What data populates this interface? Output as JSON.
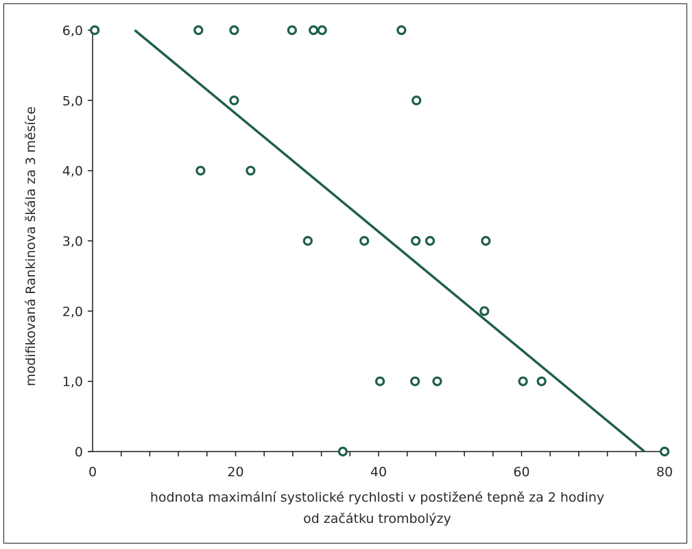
{
  "chart_data": {
    "type": "scatter",
    "title": "",
    "xlabel_lines": [
      "hodnota maximální systolické rychlosti v postižené tepně za 2 hodiny",
      "od začátku trombolýzy"
    ],
    "ylabel": "modifikovaná Rankinova škála za 3 měsíce",
    "xlim": [
      0,
      80
    ],
    "ylim": [
      0,
      6
    ],
    "x_ticks": [
      {
        "value": 0,
        "label": "0"
      },
      {
        "value": 20,
        "label": "20"
      },
      {
        "value": 40,
        "label": "40"
      },
      {
        "value": 60,
        "label": "60"
      },
      {
        "value": 80,
        "label": "80"
      }
    ],
    "x_minor_step": 4,
    "y_ticks": [
      {
        "value": 0,
        "label": "0"
      },
      {
        "value": 1,
        "label": "1,0"
      },
      {
        "value": 2,
        "label": "2,0"
      },
      {
        "value": 3,
        "label": "3,0"
      },
      {
        "value": 4,
        "label": "4,0"
      },
      {
        "value": 5,
        "label": "5,0"
      },
      {
        "value": 6,
        "label": "6,0"
      }
    ],
    "grid": false,
    "color": "#1f5f4e",
    "points": [
      {
        "x": 0.3,
        "y": 6
      },
      {
        "x": 14.8,
        "y": 6
      },
      {
        "x": 19.8,
        "y": 6
      },
      {
        "x": 27.9,
        "y": 6
      },
      {
        "x": 30.9,
        "y": 6
      },
      {
        "x": 32.1,
        "y": 6
      },
      {
        "x": 43.2,
        "y": 6
      },
      {
        "x": 19.8,
        "y": 5
      },
      {
        "x": 45.3,
        "y": 5
      },
      {
        "x": 15.1,
        "y": 4
      },
      {
        "x": 22.1,
        "y": 4
      },
      {
        "x": 30.1,
        "y": 3
      },
      {
        "x": 38.0,
        "y": 3
      },
      {
        "x": 45.2,
        "y": 3
      },
      {
        "x": 47.2,
        "y": 3
      },
      {
        "x": 55.0,
        "y": 3
      },
      {
        "x": 54.8,
        "y": 2
      },
      {
        "x": 40.2,
        "y": 1
      },
      {
        "x": 45.1,
        "y": 1
      },
      {
        "x": 48.2,
        "y": 1
      },
      {
        "x": 60.2,
        "y": 1
      },
      {
        "x": 62.8,
        "y": 1
      },
      {
        "x": 35.0,
        "y": 0
      },
      {
        "x": 80.0,
        "y": 0
      }
    ],
    "trendline": {
      "x1": 5.9,
      "y1": 6.0,
      "x2": 77.2,
      "y2": 0.0
    }
  }
}
